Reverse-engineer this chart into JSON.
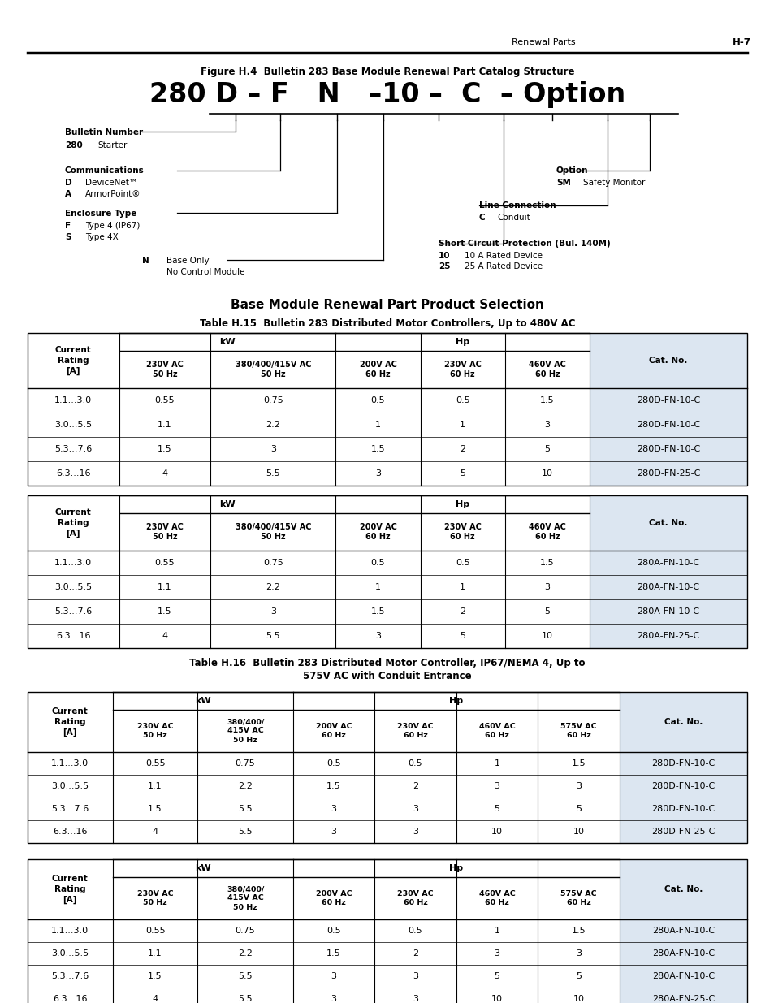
{
  "page_header_left": "Renewal Parts",
  "page_header_right": "H-7",
  "fig_caption": "Figure H.4  Bulletin 283 Base Module Renewal Part Catalog Structure",
  "section_title": "Base Module Renewal Part Product Selection",
  "table15_title": "Table H.15  Bulletin 283 Distributed Motor Controllers, Up to 480V AC",
  "table16_title_line1": "Table H.16  Bulletin 283 Distributed Motor Controller, IP67/NEMA 4, Up to",
  "table16_title_line2": "575V AC with Conduit Entrance",
  "table15_D_rows": [
    [
      "1.1...3.0",
      "0.55",
      "0.75",
      "0.5",
      "0.5",
      "1.5",
      "280D-FN-10-C"
    ],
    [
      "3.0...5.5",
      "1.1",
      "2.2",
      "1",
      "1",
      "3",
      "280D-FN-10-C"
    ],
    [
      "5.3...7.6",
      "1.5",
      "3",
      "1.5",
      "2",
      "5",
      "280D-FN-10-C"
    ],
    [
      "6.3...16",
      "4",
      "5.5",
      "3",
      "5",
      "10",
      "280D-FN-25-C"
    ]
  ],
  "table15_A_rows": [
    [
      "1.1...3.0",
      "0.55",
      "0.75",
      "0.5",
      "0.5",
      "1.5",
      "280A-FN-10-C"
    ],
    [
      "3.0...5.5",
      "1.1",
      "2.2",
      "1",
      "1",
      "3",
      "280A-FN-10-C"
    ],
    [
      "5.3...7.6",
      "1.5",
      "3",
      "1.5",
      "2",
      "5",
      "280A-FN-10-C"
    ],
    [
      "6.3...16",
      "4",
      "5.5",
      "3",
      "5",
      "10",
      "280A-FN-25-C"
    ]
  ],
  "table16_D_rows": [
    [
      "1.1...3.0",
      "0.55",
      "0.75",
      "0.5",
      "0.5",
      "1",
      "1.5",
      "280D-FN-10-C"
    ],
    [
      "3.0...5.5",
      "1.1",
      "2.2",
      "1.5",
      "2",
      "3",
      "3",
      "280D-FN-10-C"
    ],
    [
      "5.3...7.6",
      "1.5",
      "5.5",
      "3",
      "3",
      "5",
      "5",
      "280D-FN-10-C"
    ],
    [
      "6.3...16",
      "4",
      "5.5",
      "3",
      "3",
      "10",
      "10",
      "280D-FN-25-C"
    ]
  ],
  "table16_A_rows": [
    [
      "1.1...3.0",
      "0.55",
      "0.75",
      "0.5",
      "0.5",
      "1",
      "1.5",
      "280A-FN-10-C"
    ],
    [
      "3.0...5.5",
      "1.1",
      "2.2",
      "1.5",
      "2",
      "3",
      "3",
      "280A-FN-10-C"
    ],
    [
      "5.3...7.6",
      "1.5",
      "5.5",
      "3",
      "3",
      "5",
      "5",
      "280A-FN-10-C"
    ],
    [
      "6.3...16",
      "4",
      "5.5",
      "3",
      "3",
      "10",
      "10",
      "280A-FN-25-C"
    ]
  ],
  "cat_col_color": "#dce6f1",
  "bg_color": "#ffffff",
  "text_color": "#000000"
}
